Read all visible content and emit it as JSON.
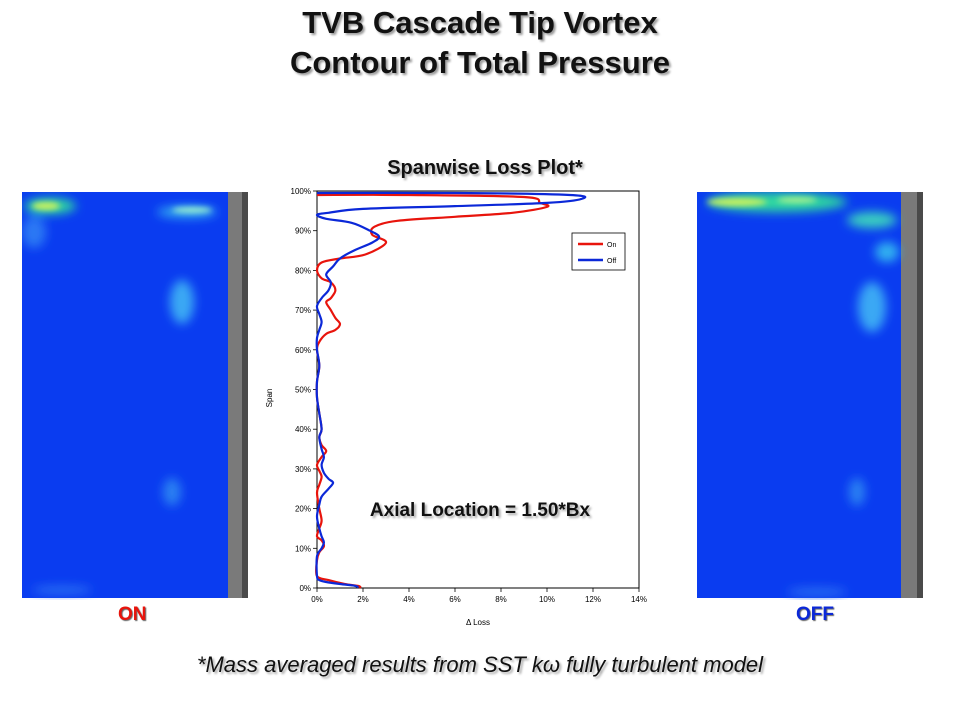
{
  "title_line1": "TVB Cascade Tip Vortex",
  "title_line2": "Contour of Total Pressure",
  "left_label": "ON",
  "right_label": "OFF",
  "footnote": "*Mass averaged results from SST kω fully turbulent model",
  "colors": {
    "on": "#e8140c",
    "off": "#0b28d8",
    "contour_bg": "#0a3cf0"
  },
  "chart_data": {
    "type": "line",
    "title": "Spanwise Loss Plot*",
    "xlabel": "Δ Loss",
    "ylabel": "Span",
    "annotation": "Axial Location = 1.50*Bx",
    "xlim": [
      0,
      0.14
    ],
    "ylim": [
      0,
      1.0
    ],
    "x_ticks": [
      "0%",
      "2%",
      "4%",
      "6%",
      "8%",
      "10%",
      "12%",
      "14%"
    ],
    "y_ticks": [
      "0%",
      "10%",
      "20%",
      "30%",
      "40%",
      "50%",
      "60%",
      "70%",
      "80%",
      "90%",
      "100%"
    ],
    "legend": {
      "placement": "top-right",
      "entries": [
        "On",
        "Off"
      ]
    },
    "grid": false,
    "series": [
      {
        "name": "On",
        "points": [
          [
            0.0,
            0.99
          ],
          [
            0.04,
            0.99
          ],
          [
            0.09,
            0.985
          ],
          [
            0.097,
            0.97
          ],
          [
            0.1,
            0.96
          ],
          [
            0.085,
            0.945
          ],
          [
            0.06,
            0.935
          ],
          [
            0.035,
            0.925
          ],
          [
            0.025,
            0.91
          ],
          [
            0.024,
            0.89
          ],
          [
            0.03,
            0.87
          ],
          [
            0.021,
            0.84
          ],
          [
            0.01,
            0.83
          ],
          [
            0.002,
            0.82
          ],
          [
            0.0,
            0.8
          ],
          [
            0.002,
            0.78
          ],
          [
            0.006,
            0.77
          ],
          [
            0.008,
            0.75
          ],
          [
            0.006,
            0.73
          ],
          [
            0.004,
            0.72
          ],
          [
            0.006,
            0.7
          ],
          [
            0.008,
            0.68
          ],
          [
            0.01,
            0.665
          ],
          [
            0.008,
            0.65
          ],
          [
            0.004,
            0.64
          ],
          [
            0.001,
            0.62
          ],
          [
            0.0,
            0.6
          ],
          [
            0.001,
            0.56
          ],
          [
            0.0,
            0.52
          ],
          [
            0.0,
            0.48
          ],
          [
            0.001,
            0.44
          ],
          [
            0.002,
            0.4
          ],
          [
            0.001,
            0.38
          ],
          [
            0.002,
            0.36
          ],
          [
            0.004,
            0.345
          ],
          [
            0.002,
            0.33
          ],
          [
            0.0,
            0.31
          ],
          [
            0.001,
            0.295
          ],
          [
            0.002,
            0.28
          ],
          [
            0.001,
            0.26
          ],
          [
            0.0,
            0.24
          ],
          [
            0.001,
            0.2
          ],
          [
            0.002,
            0.17
          ],
          [
            0.001,
            0.15
          ],
          [
            0.0,
            0.13
          ],
          [
            0.002,
            0.12
          ],
          [
            0.003,
            0.105
          ],
          [
            0.001,
            0.09
          ],
          [
            0.0,
            0.07
          ],
          [
            0.0,
            0.03
          ],
          [
            0.005,
            0.02
          ],
          [
            0.012,
            0.01
          ],
          [
            0.018,
            0.005
          ],
          [
            0.019,
            0.0
          ]
        ]
      },
      {
        "name": "Off",
        "points": [
          [
            0.0,
            0.995
          ],
          [
            0.06,
            0.995
          ],
          [
            0.11,
            0.99
          ],
          [
            0.115,
            0.98
          ],
          [
            0.1,
            0.97
          ],
          [
            0.06,
            0.962
          ],
          [
            0.02,
            0.955
          ],
          [
            0.005,
            0.945
          ],
          [
            0.0,
            0.94
          ],
          [
            0.004,
            0.93
          ],
          [
            0.015,
            0.92
          ],
          [
            0.023,
            0.9
          ],
          [
            0.027,
            0.885
          ],
          [
            0.024,
            0.87
          ],
          [
            0.016,
            0.85
          ],
          [
            0.01,
            0.83
          ],
          [
            0.007,
            0.81
          ],
          [
            0.004,
            0.79
          ],
          [
            0.006,
            0.77
          ],
          [
            0.005,
            0.75
          ],
          [
            0.002,
            0.73
          ],
          [
            0.0,
            0.71
          ],
          [
            0.001,
            0.69
          ],
          [
            0.002,
            0.67
          ],
          [
            0.001,
            0.65
          ],
          [
            0.0,
            0.63
          ],
          [
            0.0,
            0.6
          ],
          [
            0.001,
            0.56
          ],
          [
            0.0,
            0.52
          ],
          [
            0.0,
            0.48
          ],
          [
            0.001,
            0.44
          ],
          [
            0.002,
            0.4
          ],
          [
            0.001,
            0.38
          ],
          [
            0.002,
            0.35
          ],
          [
            0.003,
            0.33
          ],
          [
            0.002,
            0.31
          ],
          [
            0.003,
            0.29
          ],
          [
            0.005,
            0.275
          ],
          [
            0.007,
            0.265
          ],
          [
            0.005,
            0.25
          ],
          [
            0.002,
            0.23
          ],
          [
            0.001,
            0.21
          ],
          [
            0.0,
            0.18
          ],
          [
            0.001,
            0.15
          ],
          [
            0.002,
            0.13
          ],
          [
            0.003,
            0.115
          ],
          [
            0.002,
            0.1
          ],
          [
            0.0,
            0.08
          ],
          [
            0.0,
            0.03
          ],
          [
            0.001,
            0.02
          ],
          [
            0.004,
            0.015
          ],
          [
            0.01,
            0.01
          ],
          [
            0.016,
            0.006
          ],
          [
            0.018,
            0.002
          ]
        ]
      }
    ]
  }
}
